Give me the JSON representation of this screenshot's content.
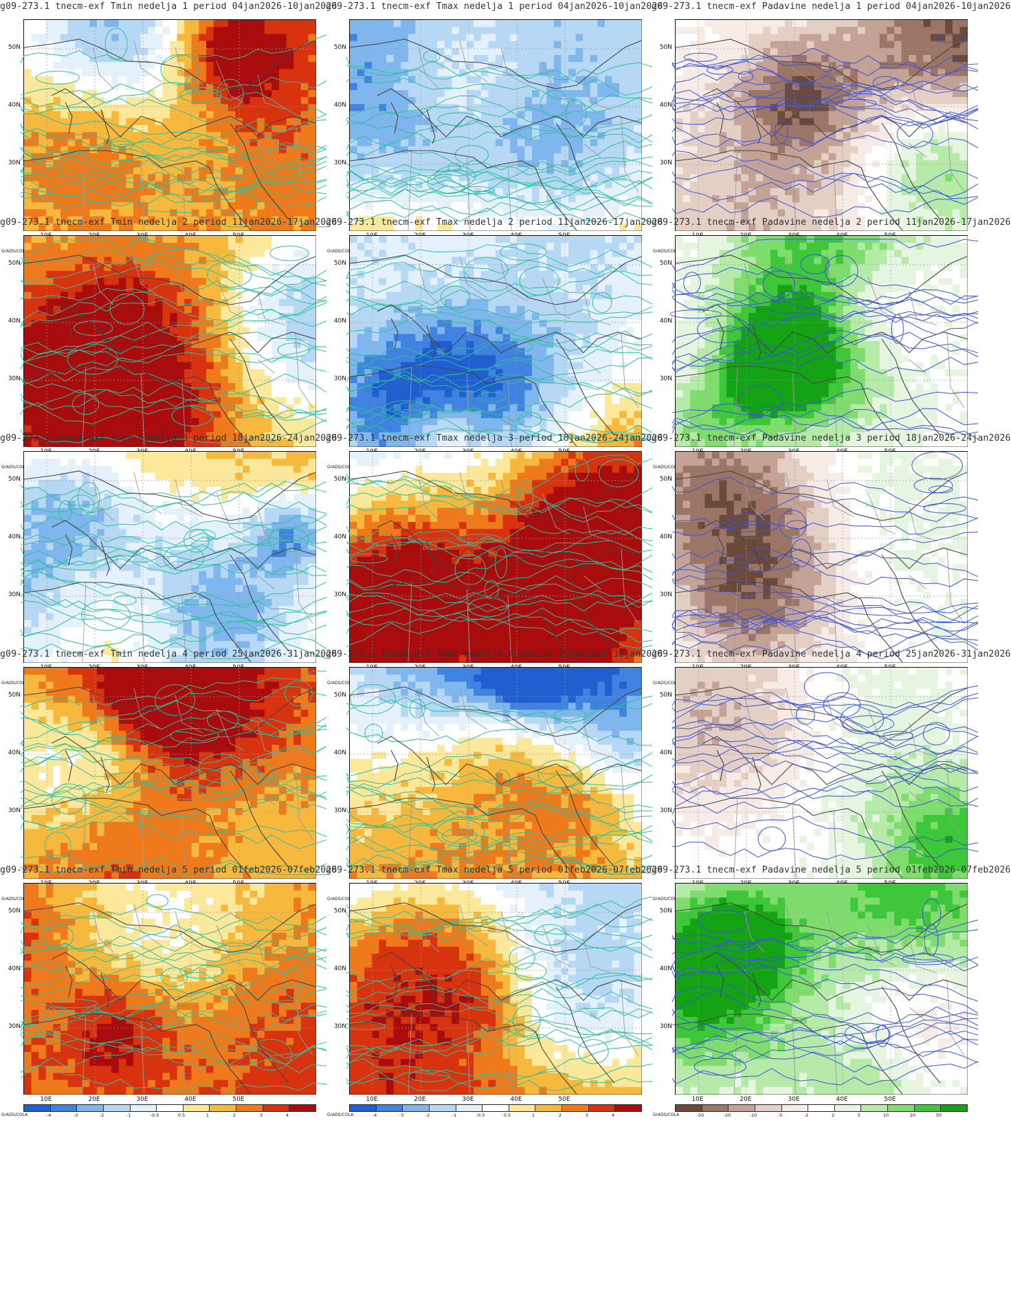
{
  "brand": "GrADS/COLA",
  "colors": {
    "tmin_tmax": [
      "#1f5fd0",
      "#3f82e0",
      "#7fb6ee",
      "#b6d8f5",
      "#e4f1fb",
      "#ffffff",
      "#fbe89a",
      "#f6b93e",
      "#ef7a1c",
      "#d8330f",
      "#a80c0c"
    ],
    "padavine": [
      "#6b4a3a",
      "#9b7565",
      "#c4a295",
      "#e4cfc4",
      "#f6ece5",
      "#ffffff",
      "#e6f5e0",
      "#b6eaa9",
      "#7fdd6e",
      "#3fc73a",
      "#14a314"
    ],
    "contour_temp": "#2fbf9a",
    "contour_precip": "#3a54e0",
    "coast": "#444444",
    "border": "#9a9a9a"
  },
  "axes": {
    "y_ticks": [
      "50N",
      "40N",
      "30N"
    ],
    "x_ticks": [
      "10E",
      "20E",
      "30E",
      "40E",
      "50E"
    ]
  },
  "colorbar_labels": {
    "temperature": [
      "-4",
      "-3",
      "-2",
      "-1",
      "-0.5",
      "0.5",
      "1",
      "2",
      "3",
      "4"
    ],
    "precipitation": [
      "-50",
      "-20",
      "-10",
      "-5",
      "-2",
      "2",
      "5",
      "10",
      "20",
      "50"
    ]
  },
  "rows": [
    {
      "tmin": "g09-273.1 tnecm-exf Tmin nedelja 1 period 04jan2026-10jan2026",
      "tmax": "g09-273.1 tnecm-exf Tmax nedelja 1 period 04jan2026-10jan2026",
      "pad": "g09-273.1 tnecm-exf Padavine nedelja 1 period 04jan2026-10jan2026"
    },
    {
      "tmin": "g09-273.1 tnecm-exf Tmin nedelja 2 period 11jan2026-17jan2026",
      "tmax": "g09-273.1 tnecm-exf Tmax nedelja 2 period 11jan2026-17jan2026",
      "pad": "g09-273.1 tnecm-exf Padavine nedelja 2 period 11jan2026-17jan2026"
    },
    {
      "tmin": "g09-273.1 tnecm-exf Tmin nedelja 3 period 18jan2026-24jan2026",
      "tmax": "g09-273.1 tnecm-exf Tmax nedelja 3 period 18jan2026-24jan2026",
      "pad": "g09-273.1 tnecm-exf Padavine nedelja 3 period 18jan2026-24jan2026"
    },
    {
      "tmin": "g09-273.1 tnecm-exf Tmin nedelja 4 period 25jan2026-31jan2026",
      "tmax": "g09-273.1 tnecm-exf Tmax nedelja 4 period 25jan2026-31jan2026",
      "pad": "g09-273.1 tnecm-exf Padavine nedelja 4 period 25jan2026-31jan2026"
    },
    {
      "tmin": "g09-273.1 tnecm-exf Tmin nedelja 5 period 01feb2026-07feb2026",
      "tmax": "g09-273.1 tnecm-exf Tmax nedelja 5 period 01feb2026-07feb2026",
      "pad": "g09-273.1 tnecm-exf Padavine nedelja 5 period 01feb2026-07feb2026"
    }
  ]
}
